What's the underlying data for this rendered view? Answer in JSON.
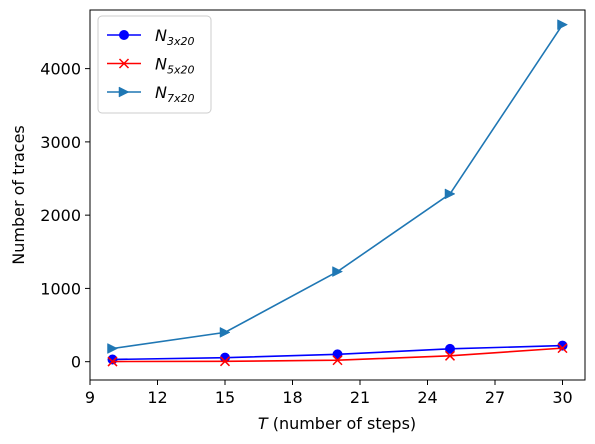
{
  "chart_data": {
    "type": "line",
    "xlabel_var": "T",
    "xlabel_rest": " (number of steps)",
    "ylabel": "Number of traces",
    "xlim": [
      9,
      31
    ],
    "ylim": [
      -250,
      4800
    ],
    "xticks": [
      9,
      12,
      15,
      18,
      21,
      24,
      27,
      30
    ],
    "xtick_labels": [
      "9",
      "12",
      "15",
      "18",
      "21",
      "24",
      "27",
      "30"
    ],
    "yticks": [
      0,
      1000,
      2000,
      3000,
      4000
    ],
    "ytick_labels": [
      "0",
      "1000",
      "2000",
      "3000",
      "4000"
    ],
    "grid": false,
    "legend_position": "top-left",
    "x": [
      10,
      15,
      20,
      25,
      30
    ],
    "series": [
      {
        "name_main": "N",
        "name_sub": "3x20",
        "color": "#0000ff",
        "marker": "circle",
        "values": [
          30,
          55,
          100,
          175,
          220
        ]
      },
      {
        "name_main": "N",
        "name_sub": "5x20",
        "color": "#ff0000",
        "marker": "x",
        "values": [
          2,
          5,
          20,
          80,
          185
        ]
      },
      {
        "name_main": "N",
        "name_sub": "7x20",
        "color": "#1f77b4",
        "marker": "triangle-right",
        "values": [
          180,
          400,
          1230,
          2290,
          4600
        ]
      }
    ]
  }
}
